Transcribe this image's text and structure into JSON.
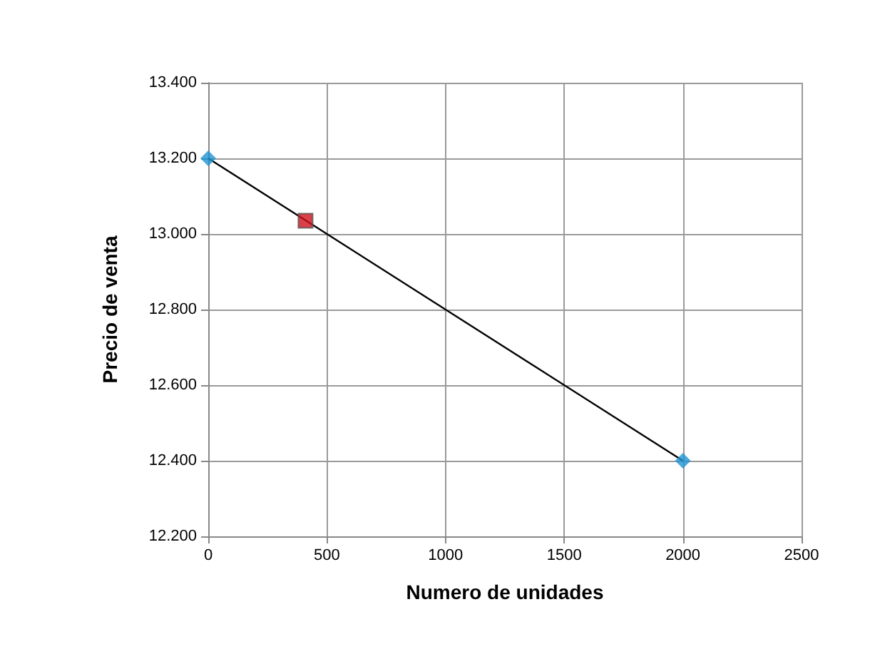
{
  "chart_data": {
    "type": "line",
    "xlabel": "Numero de unidades",
    "ylabel": "Precio de venta",
    "xlim": [
      0,
      2500
    ],
    "xticks": [
      0,
      500,
      1000,
      1500,
      2000,
      2500
    ],
    "ylim": [
      12.2,
      13.4
    ],
    "yticks": [
      {
        "value": 12.2,
        "label": "12.200"
      },
      {
        "value": 12.4,
        "label": "12.400"
      },
      {
        "value": 12.6,
        "label": "12.600"
      },
      {
        "value": 12.8,
        "label": "12.800"
      },
      {
        "value": 13.0,
        "label": "13.000"
      },
      {
        "value": 13.2,
        "label": "13.200"
      },
      {
        "value": 13.4,
        "label": "13.400"
      }
    ],
    "grid": true,
    "series": [
      {
        "color": "#000000",
        "marker": "none",
        "x": [
          0,
          2000
        ],
        "values": [
          13.2,
          12.4
        ]
      },
      {
        "type": "scatter",
        "color": "#1e93d6",
        "marker": "diamond",
        "x": [
          0,
          2000
        ],
        "values": [
          13.2,
          12.4
        ]
      },
      {
        "type": "scatter",
        "color": "#d0101a",
        "marker": "square",
        "x": [
          410
        ],
        "values": [
          13.035
        ]
      }
    ]
  }
}
